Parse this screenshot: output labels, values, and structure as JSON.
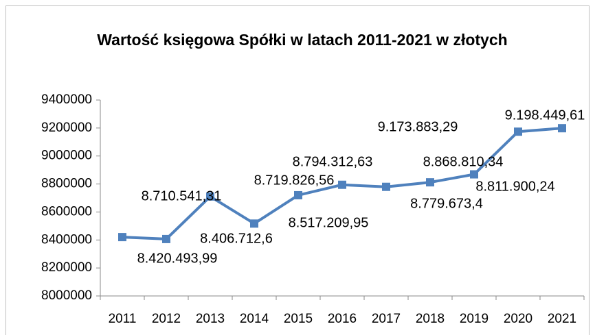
{
  "chart_data": {
    "type": "line",
    "title": "Wartość księgowa Spółki w latach 2011-2021 w złotych",
    "categories": [
      "2011",
      "2012",
      "2013",
      "2014",
      "2015",
      "2016",
      "2017",
      "2018",
      "2019",
      "2020",
      "2021"
    ],
    "series": [
      {
        "name": "Wartość księgowa",
        "color": "#4f81bd",
        "values": [
          8420493.99,
          8406712.6,
          8710541.31,
          8517209.95,
          8719826.56,
          8794312.63,
          8779673.4,
          8811900.24,
          8868810.34,
          9173883.29,
          9198449.61
        ],
        "value_labels": [
          "8.420.493,99",
          "8.406.712,6",
          "8.710.541,31",
          "8.517.209,95",
          "8.719.826,56",
          "8.794.312,63",
          "8.779.673,4",
          "8.811.900,24",
          "8.868.810,34",
          "9.173.883,29",
          "9.198.449,61"
        ]
      }
    ],
    "ylim": [
      8000000,
      9400000
    ],
    "yticks": [
      8000000,
      8200000,
      8400000,
      8600000,
      8800000,
      9000000,
      9200000,
      9400000
    ],
    "grid": false,
    "legend": false
  }
}
